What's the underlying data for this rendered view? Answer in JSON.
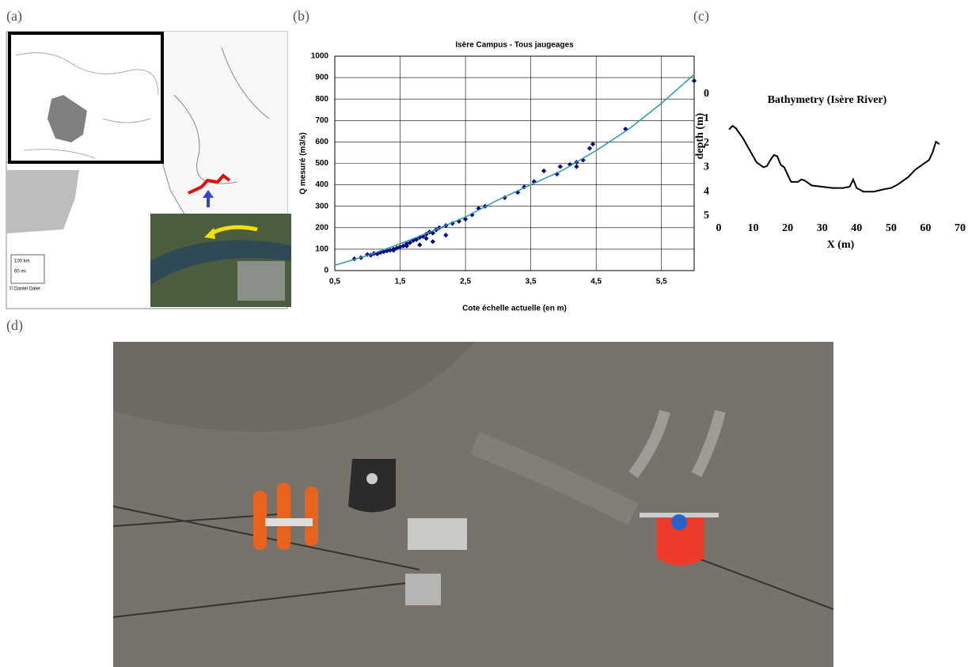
{
  "panel_labels": [
    "(a)",
    "(b)",
    "(c)",
    "(d)"
  ],
  "map": {
    "scale_texts": [
      "100 km",
      "60 mi",
      "© Daniel Dalet"
    ]
  },
  "chart_data": [
    {
      "type": "scatter",
      "title": "Isère Campus - Tous jaugeages",
      "x_label": "Cote échelle actuelle (en m)",
      "y_label": "Q mesuré (m3/s)",
      "xlim": [
        0.5,
        6.0
      ],
      "ylim": [
        0,
        1000
      ],
      "xticks": [
        {
          "value": 0.5,
          "label": "0,5"
        },
        {
          "value": 1.5,
          "label": "1,5"
        },
        {
          "value": 2.5,
          "label": "2,5"
        },
        {
          "value": 3.5,
          "label": "3,5"
        },
        {
          "value": 4.5,
          "label": "4,5"
        },
        {
          "value": 5.5,
          "label": "5,5"
        }
      ],
      "yticks": [
        0,
        100,
        200,
        300,
        400,
        500,
        600,
        700,
        800,
        900,
        1000
      ],
      "grid": true,
      "series": [
        {
          "type": "scatter",
          "color": "#00008b",
          "x": [
            0.8,
            0.9,
            1.0,
            1.05,
            1.1,
            1.15,
            1.2,
            1.25,
            1.3,
            1.35,
            1.4,
            1.45,
            1.5,
            1.55,
            1.6,
            1.65,
            1.7,
            1.75,
            1.8,
            1.85,
            1.9,
            1.95,
            2.0,
            2.05,
            2.1,
            2.2,
            2.3,
            2.4,
            2.5,
            2.6,
            2.7,
            2.8,
            3.1,
            3.3,
            3.4,
            3.55,
            3.7,
            3.9,
            3.95,
            4.1,
            4.2,
            4.3,
            4.4,
            4.45,
            4.2,
            4.95,
            6.0,
            1.8,
            2.0,
            1.6,
            1.4,
            2.2,
            1.9
          ],
          "values": [
            55,
            60,
            75,
            72,
            80,
            78,
            85,
            88,
            92,
            95,
            100,
            105,
            110,
            115,
            125,
            130,
            140,
            145,
            155,
            160,
            170,
            180,
            175,
            190,
            200,
            210,
            220,
            230,
            240,
            260,
            290,
            300,
            340,
            365,
            390,
            415,
            465,
            450,
            485,
            495,
            505,
            515,
            570,
            590,
            485,
            660,
            885,
            120,
            135,
            115,
            95,
            165,
            150
          ]
        },
        {
          "type": "line",
          "color": "#2a9d9d",
          "x": [
            0.5,
            1.0,
            1.5,
            2.0,
            2.5,
            3.0,
            3.5,
            4.0,
            4.5,
            5.0,
            5.5,
            6.0
          ],
          "values": [
            25,
            70,
            125,
            185,
            250,
            330,
            400,
            470,
            560,
            660,
            780,
            915
          ]
        }
      ]
    },
    {
      "type": "line",
      "title": "Bathymetry (Isère River)",
      "x_label": "X (m)",
      "y_label": "depth (m)",
      "xlim": [
        0,
        70
      ],
      "ylim": [
        0,
        5
      ],
      "y_inverted": true,
      "xticks": [
        0,
        10,
        20,
        30,
        40,
        50,
        60,
        70
      ],
      "yticks": [
        0,
        1,
        2,
        3,
        4,
        5
      ],
      "series": [
        {
          "color": "#000000",
          "x": [
            3,
            4,
            5,
            7,
            9,
            11,
            13,
            14,
            15,
            16,
            17,
            18,
            19,
            20,
            21,
            23,
            24,
            25,
            27,
            30,
            33,
            36,
            38,
            39,
            40,
            42,
            45,
            48,
            50,
            52,
            55,
            57,
            59,
            61,
            62,
            63,
            64
          ],
          "values": [
            1.45,
            1.3,
            1.4,
            1.8,
            2.3,
            2.8,
            3.0,
            2.95,
            2.7,
            2.5,
            2.55,
            2.9,
            3.0,
            3.3,
            3.6,
            3.6,
            3.5,
            3.55,
            3.75,
            3.8,
            3.85,
            3.85,
            3.8,
            3.5,
            3.85,
            4.0,
            4.0,
            3.9,
            3.85,
            3.7,
            3.4,
            3.1,
            2.9,
            2.7,
            2.4,
            1.95,
            2.05
          ]
        }
      ]
    }
  ]
}
